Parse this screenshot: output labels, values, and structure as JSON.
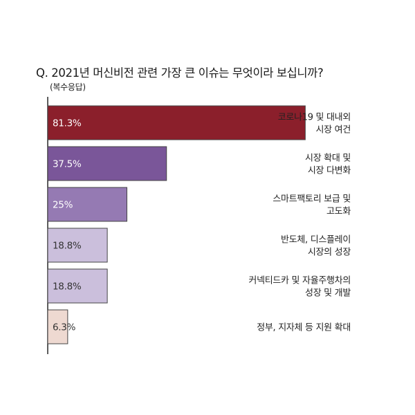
{
  "title": "Q. 2021년 머신비전 관련 가장 큰 이슈는 무엇이라 보십니까?",
  "subtitle": "(복수응답)",
  "chart_data": {
    "type": "bar",
    "orientation": "horizontal",
    "title": "Q. 2021년 머신비전 관련 가장 큰 이슈는 무엇이라 보십니까?",
    "subtitle": "(복수응답)",
    "categories": [
      [
        "코로나19 및 대내외",
        "시장 여건"
      ],
      [
        "시장 확대 및",
        "시장 다변화"
      ],
      [
        "스마트팩토리 보급 및",
        "고도화"
      ],
      [
        "반도체, 디스플레이",
        "시장의 성장"
      ],
      [
        "커넥티드카 및 자율주행차의",
        "성장 및 개발"
      ],
      [
        "정부, 지자체 등 지원 확대"
      ]
    ],
    "values": [
      81.3,
      37.5,
      25,
      18.8,
      18.8,
      6.3
    ],
    "value_labels": [
      "81.3%",
      "37.5%",
      "25%",
      "18.8%",
      "18.8%",
      "6.3%"
    ],
    "unit": "%",
    "xlim": [
      0,
      100
    ],
    "grid": false,
    "legend": "none",
    "colors": [
      "#8b1f2b",
      "#7a5699",
      "#957ab3",
      "#cbbfdc",
      "#cbbfdc",
      "#eed9d1"
    ],
    "value_text_colors": [
      "#ffffff",
      "#ffffff",
      "#ffffff",
      "#333333",
      "#333333",
      "#333333"
    ],
    "axis_color": "#333333"
  }
}
